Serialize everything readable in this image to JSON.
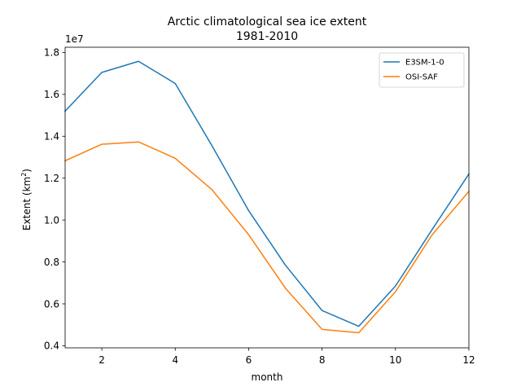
{
  "chart_data": {
    "type": "line",
    "title_line1": "Arctic climatological sea ice extent",
    "title_line2": "1981-2010",
    "xlabel": "month",
    "ylabel_main": "Extent (km",
    "ylabel_sup": "2",
    "ylabel_close": ")",
    "offset_text": "1e7",
    "xlim": [
      1,
      12
    ],
    "ylim": [
      0.39,
      1.825
    ],
    "xticks": [
      2,
      4,
      6,
      8,
      10,
      12
    ],
    "yticks": [
      0.4,
      0.6,
      0.8,
      1.0,
      1.2,
      1.4,
      1.6,
      1.8
    ],
    "grid": false,
    "legend_position": "top-right",
    "x": [
      1,
      2,
      3,
      4,
      5,
      6,
      7,
      8,
      9,
      10,
      11,
      12
    ],
    "series": [
      {
        "name": "E3SM-1-0",
        "color": "#1f77b4",
        "values": [
          1.52,
          1.705,
          1.758,
          1.652,
          1.355,
          1.045,
          0.785,
          0.568,
          0.493,
          0.685,
          0.955,
          1.22
        ]
      },
      {
        "name": "OSI-SAF",
        "color": "#ff7f0e",
        "values": [
          1.283,
          1.362,
          1.373,
          1.295,
          1.145,
          0.93,
          0.675,
          0.478,
          0.462,
          0.658,
          0.93,
          1.137
        ]
      }
    ]
  }
}
